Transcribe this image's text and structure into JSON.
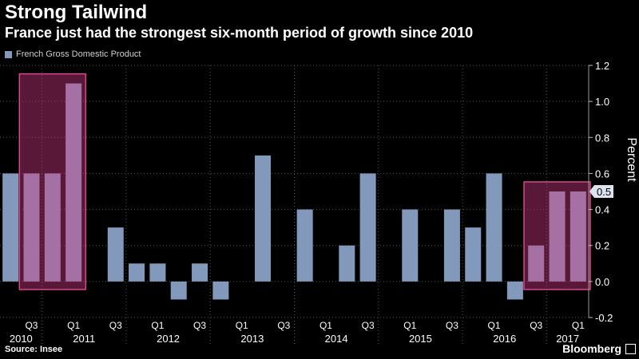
{
  "title": "Strong Tailwind",
  "subtitle": "France just had the strongest six-month period of growth since 2010",
  "source": "Source: Insee",
  "brand": "Bloomberg",
  "colors": {
    "bar": "#8399bc",
    "highlight_fill": "#d43a84",
    "highlight_border": "#d44a8a",
    "background": "#000000",
    "grid": "#555555",
    "text": "#ffffff"
  },
  "chart_data": {
    "type": "bar",
    "title": "Strong Tailwind",
    "subtitle": "France just had the strongest six-month period of growth since 2010",
    "ylabel": "Percent",
    "ylim": [
      -0.2,
      1.2
    ],
    "yticks": [
      -0.2,
      0.0,
      0.2,
      0.4,
      0.6,
      0.8,
      1.0,
      1.2
    ],
    "ytick_labels": [
      "-0.2",
      "0.0",
      "0.2",
      "0.4",
      "0.6",
      "0.8",
      "1.0",
      "1.2"
    ],
    "y_axis_position": "right",
    "legend": {
      "entries": [
        "French Gross Domestic Product"
      ],
      "placement": "top-left"
    },
    "series": [
      {
        "name": "French Gross Domestic Product",
        "values": [
          0.6,
          0.6,
          0.6,
          1.1,
          0.0,
          0.3,
          0.1,
          0.1,
          -0.1,
          0.1,
          -0.1,
          0.0,
          0.7,
          0.0,
          0.4,
          0.0,
          0.2,
          0.6,
          0.0,
          0.4,
          0.0,
          0.4,
          0.3,
          0.6,
          -0.1,
          0.2,
          0.5,
          0.5
        ]
      }
    ],
    "quarter_labels": [
      {
        "index": 1,
        "label": "Q3"
      },
      {
        "index": 3,
        "label": "Q1"
      },
      {
        "index": 5,
        "label": "Q3"
      },
      {
        "index": 7,
        "label": "Q1"
      },
      {
        "index": 9,
        "label": "Q3"
      },
      {
        "index": 11,
        "label": "Q1"
      },
      {
        "index": 13,
        "label": "Q3"
      },
      {
        "index": 15,
        "label": "Q1"
      },
      {
        "index": 17,
        "label": "Q3"
      },
      {
        "index": 19,
        "label": "Q1"
      },
      {
        "index": 21,
        "label": "Q3"
      },
      {
        "index": 23,
        "label": "Q1"
      },
      {
        "index": 25,
        "label": "Q3"
      },
      {
        "index": 27,
        "label": "Q1"
      }
    ],
    "years": [
      {
        "label": "2010",
        "start": 0,
        "end": 2
      },
      {
        "label": "2011",
        "start": 2,
        "end": 6
      },
      {
        "label": "2012",
        "start": 6,
        "end": 10
      },
      {
        "label": "2013",
        "start": 10,
        "end": 14
      },
      {
        "label": "2014",
        "start": 14,
        "end": 18
      },
      {
        "label": "2015",
        "start": 18,
        "end": 22
      },
      {
        "label": "2016",
        "start": 22,
        "end": 26
      },
      {
        "label": "2017",
        "start": 26,
        "end": 28
      }
    ],
    "highlights": [
      {
        "from": 1,
        "to": 3
      },
      {
        "from": 25,
        "to": 27
      }
    ],
    "annotations": [
      {
        "text": "0.5",
        "value": 0.5,
        "note": "latest value marker on right axis"
      }
    ]
  }
}
